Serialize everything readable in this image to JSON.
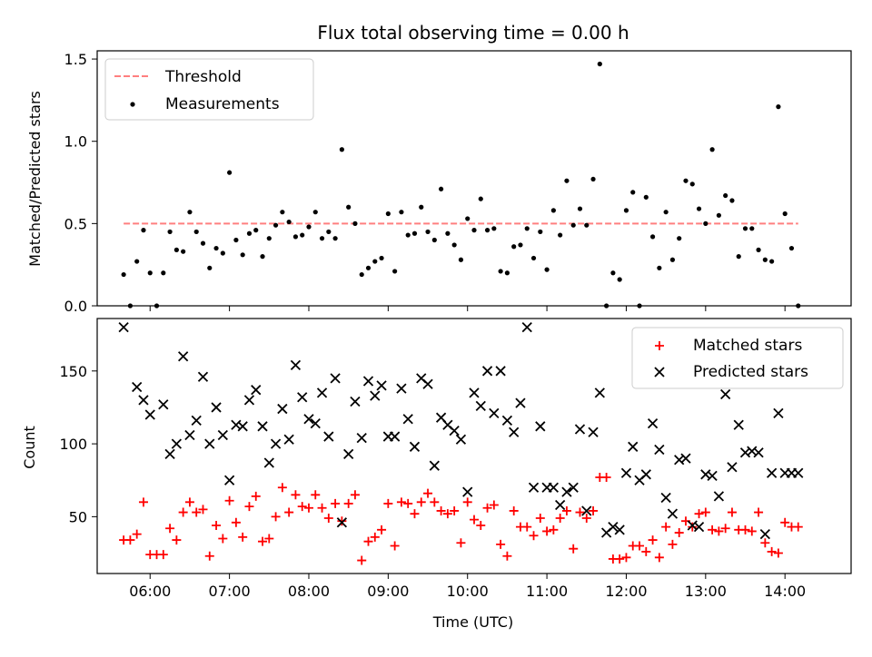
{
  "chart_data": [
    {
      "type": "scatter",
      "title": "Flux total observing time = 0.00 h",
      "xlabel": "",
      "ylabel": "Matched/Predicted stars",
      "xlim": [
        "05:20",
        "14:50"
      ],
      "ylim": [
        0,
        1.55
      ],
      "yticks": [
        "0.0",
        "0.5",
        "1.0",
        "1.5"
      ],
      "legend_position": "top-left",
      "grid": false,
      "series": [
        {
          "name": "Threshold",
          "kind": "dashed-line",
          "color": "#ff7f7f",
          "x": [
            "05:40",
            "14:10"
          ],
          "y": [
            0.5,
            0.5
          ]
        },
        {
          "name": "Measurements",
          "kind": "dots",
          "color": "#000000",
          "x": [
            "05:40",
            "05:45",
            "05:50",
            "05:55",
            "06:00",
            "06:05",
            "06:10",
            "06:15",
            "06:20",
            "06:25",
            "06:30",
            "06:35",
            "06:40",
            "06:45",
            "06:50",
            "06:55",
            "07:00",
            "07:05",
            "07:10",
            "07:15",
            "07:20",
            "07:25",
            "07:30",
            "07:35",
            "07:40",
            "07:45",
            "07:50",
            "07:55",
            "08:00",
            "08:05",
            "08:10",
            "08:15",
            "08:20",
            "08:25",
            "08:30",
            "08:35",
            "08:40",
            "08:45",
            "08:50",
            "08:55",
            "09:00",
            "09:05",
            "09:10",
            "09:15",
            "09:20",
            "09:25",
            "09:30",
            "09:35",
            "09:40",
            "09:45",
            "09:50",
            "09:55",
            "10:00",
            "10:05",
            "10:10",
            "10:15",
            "10:20",
            "10:25",
            "10:30",
            "10:35",
            "10:40",
            "10:45",
            "10:50",
            "10:55",
            "11:00",
            "11:05",
            "11:10",
            "11:15",
            "11:20",
            "11:25",
            "11:30",
            "11:35",
            "11:40",
            "11:45",
            "11:50",
            "11:55",
            "12:00",
            "12:05",
            "12:10",
            "12:15",
            "12:20",
            "12:25",
            "12:30",
            "12:35",
            "12:40",
            "12:45",
            "12:50",
            "12:55",
            "13:00",
            "13:05",
            "13:10",
            "13:15",
            "13:20",
            "13:25",
            "13:30",
            "13:35",
            "13:40",
            "13:45",
            "13:50",
            "13:55",
            "14:00",
            "14:05",
            "14:10"
          ],
          "y": [
            0.19,
            0.0,
            0.27,
            0.46,
            0.2,
            0.0,
            0.2,
            0.45,
            0.34,
            0.33,
            0.57,
            0.45,
            0.38,
            0.23,
            0.35,
            0.32,
            0.81,
            0.4,
            0.31,
            0.44,
            0.46,
            0.3,
            0.41,
            0.49,
            0.57,
            0.51,
            0.42,
            0.43,
            0.48,
            0.57,
            0.41,
            0.45,
            0.41,
            0.95,
            0.6,
            0.5,
            0.19,
            0.23,
            0.27,
            0.29,
            0.56,
            0.21,
            0.57,
            0.43,
            0.44,
            0.6,
            0.45,
            0.4,
            0.71,
            0.44,
            0.37,
            0.28,
            0.53,
            0.46,
            0.65,
            0.46,
            0.47,
            0.21,
            0.2,
            0.36,
            0.37,
            0.47,
            0.29,
            0.45,
            0.22,
            0.58,
            0.43,
            0.76,
            0.49,
            0.59,
            0.49,
            0.77,
            1.47,
            0.0,
            0.2,
            0.16,
            0.58,
            0.69,
            0.0,
            0.66,
            0.42,
            0.23,
            0.57,
            0.28,
            0.41,
            0.76,
            0.74,
            0.59,
            0.5,
            0.95,
            0.55,
            0.67,
            0.64,
            0.3,
            0.47,
            0.47,
            0.34,
            0.28,
            0.27,
            1.21,
            0.56,
            0.35,
            0.0
          ]
        }
      ]
    },
    {
      "type": "scatter",
      "title": "",
      "xlabel": "Time (UTC)",
      "ylabel": "Count",
      "xlim": [
        "05:20",
        "14:50"
      ],
      "ylim": [
        11,
        186
      ],
      "xticks": [
        "06:00",
        "07:00",
        "08:00",
        "09:00",
        "10:00",
        "11:00",
        "12:00",
        "13:00",
        "14:00"
      ],
      "yticks": [
        "50",
        "100",
        "150"
      ],
      "legend_position": "top-right",
      "grid": false,
      "series": [
        {
          "name": "Matched stars",
          "marker": "plus",
          "color": "#ff0000",
          "x": [
            "05:40",
            "05:45",
            "05:50",
            "05:55",
            "06:00",
            "06:05",
            "06:10",
            "06:15",
            "06:20",
            "06:25",
            "06:30",
            "06:35",
            "06:40",
            "06:45",
            "06:50",
            "06:55",
            "07:00",
            "07:05",
            "07:10",
            "07:15",
            "07:20",
            "07:25",
            "07:30",
            "07:35",
            "07:40",
            "07:45",
            "07:50",
            "07:55",
            "08:00",
            "08:05",
            "08:10",
            "08:15",
            "08:20",
            "08:25",
            "08:30",
            "08:35",
            "08:40",
            "08:45",
            "08:50",
            "08:55",
            "09:00",
            "09:05",
            "09:10",
            "09:15",
            "09:20",
            "09:25",
            "09:30",
            "09:35",
            "09:40",
            "09:45",
            "09:50",
            "09:55",
            "10:00",
            "10:05",
            "10:10",
            "10:15",
            "10:20",
            "10:25",
            "10:30",
            "10:35",
            "10:40",
            "10:45",
            "10:50",
            "10:55",
            "11:00",
            "11:05",
            "11:10",
            "11:15",
            "11:20",
            "11:25",
            "11:30",
            "11:35",
            "11:40",
            "11:45",
            "11:50",
            "11:55",
            "12:00",
            "12:05",
            "12:10",
            "12:15",
            "12:20",
            "12:25",
            "12:30",
            "12:35",
            "12:40",
            "12:45",
            "12:50",
            "12:55",
            "13:00",
            "13:05",
            "13:10",
            "13:15",
            "13:20",
            "13:25",
            "13:30",
            "13:35",
            "13:40",
            "13:45",
            "13:50",
            "13:55",
            "14:00",
            "14:05",
            "14:10"
          ],
          "y": [
            34,
            34,
            38,
            60,
            24,
            24,
            24,
            42,
            34,
            53,
            60,
            53,
            55,
            23,
            44,
            35,
            61,
            46,
            36,
            57,
            64,
            33,
            35,
            50,
            70,
            53,
            65,
            57,
            56,
            65,
            56,
            49,
            59,
            47,
            59,
            65,
            20,
            33,
            36,
            41,
            59,
            30,
            60,
            59,
            52,
            60,
            66,
            60,
            54,
            52,
            54,
            32,
            60,
            48,
            44,
            56,
            58,
            31,
            23,
            54,
            43,
            43,
            37,
            49,
            40,
            41,
            49,
            54,
            28,
            53,
            49,
            54,
            77,
            77,
            21,
            21,
            22,
            30,
            30,
            26,
            34,
            22,
            43,
            31,
            39,
            47,
            43,
            52,
            53,
            41,
            40,
            42,
            53,
            41,
            41,
            40,
            53,
            32,
            26,
            25,
            46,
            43,
            43
          ]
        },
        {
          "name": "Predicted stars",
          "marker": "x",
          "color": "#000000",
          "x": [
            "05:40",
            "05:50",
            "05:55",
            "06:00",
            "06:10",
            "06:15",
            "06:20",
            "06:25",
            "06:30",
            "06:35",
            "06:40",
            "06:45",
            "06:50",
            "06:55",
            "07:00",
            "07:05",
            "07:10",
            "07:15",
            "07:20",
            "07:25",
            "07:30",
            "07:35",
            "07:40",
            "07:45",
            "07:50",
            "07:55",
            "08:00",
            "08:05",
            "08:10",
            "08:15",
            "08:20",
            "08:25",
            "08:30",
            "08:35",
            "08:40",
            "08:45",
            "08:50",
            "08:55",
            "09:00",
            "09:05",
            "09:10",
            "09:15",
            "09:20",
            "09:25",
            "09:30",
            "09:35",
            "09:40",
            "09:45",
            "09:50",
            "09:55",
            "10:00",
            "10:05",
            "10:10",
            "10:15",
            "10:20",
            "10:25",
            "10:30",
            "10:35",
            "10:40",
            "10:45",
            "10:50",
            "10:55",
            "11:00",
            "11:05",
            "11:10",
            "11:15",
            "11:20",
            "11:25",
            "11:30",
            "11:35",
            "11:40",
            "11:45",
            "11:50",
            "11:55",
            "12:00",
            "12:05",
            "12:10",
            "12:15",
            "12:20",
            "12:25",
            "12:30",
            "12:35",
            "12:40",
            "12:45",
            "12:50",
            "12:55",
            "13:00",
            "13:05",
            "13:10",
            "13:15",
            "13:20",
            "13:25",
            "13:30",
            "13:35",
            "13:40",
            "13:45",
            "13:50",
            "13:55",
            "14:00",
            "14:05",
            "14:10"
          ],
          "y": [
            180,
            139,
            130,
            120,
            127,
            93,
            100,
            160,
            106,
            116,
            146,
            100,
            125,
            106,
            75,
            113,
            112,
            130,
            137,
            112,
            87,
            100,
            124,
            103,
            154,
            132,
            117,
            114,
            135,
            105,
            145,
            46,
            93,
            129,
            104,
            143,
            133,
            140,
            105,
            105,
            138,
            117,
            98,
            145,
            141,
            85,
            118,
            113,
            109,
            103,
            67,
            135,
            126,
            150,
            121,
            150,
            116,
            108,
            128,
            180,
            70,
            112,
            70,
            70,
            58,
            67,
            70,
            110,
            54,
            108,
            135,
            39,
            43,
            41,
            80,
            98,
            75,
            79,
            114,
            96,
            63,
            52,
            89,
            90,
            44,
            43,
            79,
            78,
            64,
            134,
            84,
            113,
            94,
            95,
            94,
            38,
            80,
            121,
            80,
            80,
            80
          ]
        }
      ]
    }
  ]
}
